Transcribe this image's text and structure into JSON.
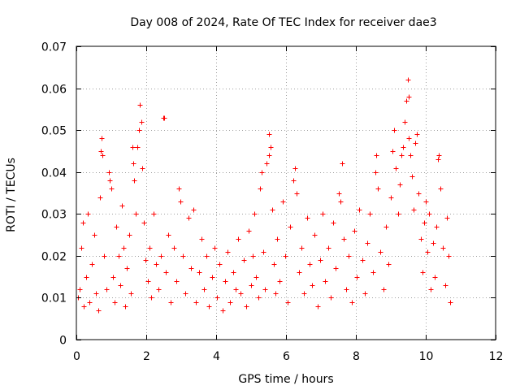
{
  "chart_data": {
    "type": "scatter",
    "title": "Day 008 of 2024, Rate Of TEC Index for receiver dae3",
    "xlabel": "GPS time / hours",
    "ylabel": "ROTI / TECUs",
    "xlim": [
      0,
      12
    ],
    "ylim": [
      0,
      0.07
    ],
    "xticks": [
      0,
      2,
      4,
      6,
      8,
      10,
      12
    ],
    "xtick_labels": [
      "0",
      "2",
      "4",
      "6",
      "8",
      "10",
      "12"
    ],
    "yticks": [
      0,
      0.01,
      0.02,
      0.03,
      0.04,
      0.05,
      0.06,
      0.07
    ],
    "ytick_labels": [
      "0",
      "0.01",
      "0.02",
      "0.03",
      "0.04",
      "0.05",
      "0.06",
      "0.07"
    ],
    "grid": true,
    "marker": "+",
    "color": "#ff0000",
    "series": [
      {
        "name": "ROTI",
        "points": [
          [
            0.05,
            0.01
          ],
          [
            0.1,
            0.012
          ],
          [
            0.15,
            0.022
          ],
          [
            0.18,
            0.028
          ],
          [
            0.22,
            0.008
          ],
          [
            0.28,
            0.015
          ],
          [
            0.32,
            0.03
          ],
          [
            0.38,
            0.009
          ],
          [
            0.45,
            0.018
          ],
          [
            0.5,
            0.025
          ],
          [
            0.55,
            0.011
          ],
          [
            0.62,
            0.007
          ],
          [
            0.68,
            0.034
          ],
          [
            0.7,
            0.045
          ],
          [
            0.72,
            0.048
          ],
          [
            0.75,
            0.044
          ],
          [
            0.8,
            0.02
          ],
          [
            0.85,
            0.012
          ],
          [
            0.92,
            0.04
          ],
          [
            0.95,
            0.038
          ],
          [
            1.0,
            0.036
          ],
          [
            1.05,
            0.015
          ],
          [
            1.1,
            0.009
          ],
          [
            1.15,
            0.027
          ],
          [
            1.2,
            0.02
          ],
          [
            1.25,
            0.013
          ],
          [
            1.3,
            0.032
          ],
          [
            1.35,
            0.022
          ],
          [
            1.4,
            0.008
          ],
          [
            1.45,
            0.017
          ],
          [
            1.5,
            0.025
          ],
          [
            1.55,
            0.011
          ],
          [
            1.6,
            0.046
          ],
          [
            1.62,
            0.042
          ],
          [
            1.65,
            0.038
          ],
          [
            1.7,
            0.03
          ],
          [
            1.75,
            0.046
          ],
          [
            1.8,
            0.05
          ],
          [
            1.82,
            0.056
          ],
          [
            1.85,
            0.052
          ],
          [
            1.88,
            0.041
          ],
          [
            1.92,
            0.028
          ],
          [
            1.98,
            0.019
          ],
          [
            2.05,
            0.014
          ],
          [
            2.1,
            0.022
          ],
          [
            2.15,
            0.01
          ],
          [
            2.2,
            0.03
          ],
          [
            2.28,
            0.018
          ],
          [
            2.35,
            0.012
          ],
          [
            2.42,
            0.02
          ],
          [
            2.48,
            0.053
          ],
          [
            2.5,
            0.053
          ],
          [
            2.55,
            0.016
          ],
          [
            2.62,
            0.025
          ],
          [
            2.7,
            0.009
          ],
          [
            2.78,
            0.022
          ],
          [
            2.85,
            0.014
          ],
          [
            2.92,
            0.036
          ],
          [
            2.98,
            0.033
          ],
          [
            3.05,
            0.02
          ],
          [
            3.12,
            0.011
          ],
          [
            3.2,
            0.029
          ],
          [
            3.28,
            0.017
          ],
          [
            3.35,
            0.031
          ],
          [
            3.42,
            0.009
          ],
          [
            3.5,
            0.016
          ],
          [
            3.58,
            0.024
          ],
          [
            3.65,
            0.012
          ],
          [
            3.72,
            0.02
          ],
          [
            3.8,
            0.008
          ],
          [
            3.88,
            0.015
          ],
          [
            3.95,
            0.022
          ],
          [
            4.02,
            0.01
          ],
          [
            4.1,
            0.018
          ],
          [
            4.18,
            0.007
          ],
          [
            4.25,
            0.014
          ],
          [
            4.32,
            0.021
          ],
          [
            4.4,
            0.009
          ],
          [
            4.48,
            0.016
          ],
          [
            4.55,
            0.012
          ],
          [
            4.62,
            0.024
          ],
          [
            4.7,
            0.011
          ],
          [
            4.78,
            0.019
          ],
          [
            4.85,
            0.008
          ],
          [
            4.92,
            0.026
          ],
          [
            5.0,
            0.013
          ],
          [
            5.05,
            0.02
          ],
          [
            5.1,
            0.03
          ],
          [
            5.15,
            0.015
          ],
          [
            5.2,
            0.01
          ],
          [
            5.25,
            0.036
          ],
          [
            5.3,
            0.04
          ],
          [
            5.35,
            0.021
          ],
          [
            5.4,
            0.012
          ],
          [
            5.45,
            0.042
          ],
          [
            5.5,
            0.044
          ],
          [
            5.52,
            0.049
          ],
          [
            5.55,
            0.046
          ],
          [
            5.6,
            0.031
          ],
          [
            5.65,
            0.018
          ],
          [
            5.7,
            0.011
          ],
          [
            5.75,
            0.024
          ],
          [
            5.82,
            0.014
          ],
          [
            5.9,
            0.033
          ],
          [
            5.98,
            0.02
          ],
          [
            6.05,
            0.009
          ],
          [
            6.12,
            0.027
          ],
          [
            6.2,
            0.038
          ],
          [
            6.25,
            0.041
          ],
          [
            6.3,
            0.035
          ],
          [
            6.38,
            0.016
          ],
          [
            6.45,
            0.022
          ],
          [
            6.52,
            0.011
          ],
          [
            6.6,
            0.029
          ],
          [
            6.68,
            0.018
          ],
          [
            6.75,
            0.013
          ],
          [
            6.82,
            0.025
          ],
          [
            6.9,
            0.008
          ],
          [
            6.98,
            0.019
          ],
          [
            7.05,
            0.03
          ],
          [
            7.12,
            0.014
          ],
          [
            7.2,
            0.022
          ],
          [
            7.28,
            0.01
          ],
          [
            7.35,
            0.028
          ],
          [
            7.42,
            0.017
          ],
          [
            7.5,
            0.035
          ],
          [
            7.55,
            0.033
          ],
          [
            7.6,
            0.042
          ],
          [
            7.65,
            0.024
          ],
          [
            7.72,
            0.012
          ],
          [
            7.8,
            0.02
          ],
          [
            7.88,
            0.009
          ],
          [
            7.95,
            0.026
          ],
          [
            8.02,
            0.015
          ],
          [
            8.1,
            0.031
          ],
          [
            8.18,
            0.019
          ],
          [
            8.25,
            0.011
          ],
          [
            8.32,
            0.023
          ],
          [
            8.4,
            0.03
          ],
          [
            8.48,
            0.016
          ],
          [
            8.55,
            0.04
          ],
          [
            8.58,
            0.044
          ],
          [
            8.62,
            0.036
          ],
          [
            8.7,
            0.021
          ],
          [
            8.78,
            0.012
          ],
          [
            8.85,
            0.027
          ],
          [
            8.92,
            0.018
          ],
          [
            9.0,
            0.034
          ],
          [
            9.05,
            0.045
          ],
          [
            9.1,
            0.05
          ],
          [
            9.15,
            0.041
          ],
          [
            9.2,
            0.03
          ],
          [
            9.25,
            0.037
          ],
          [
            9.3,
            0.044
          ],
          [
            9.35,
            0.046
          ],
          [
            9.4,
            0.052
          ],
          [
            9.45,
            0.057
          ],
          [
            9.48,
            0.062
          ],
          [
            9.5,
            0.058
          ],
          [
            9.52,
            0.048
          ],
          [
            9.55,
            0.044
          ],
          [
            9.6,
            0.039
          ],
          [
            9.65,
            0.031
          ],
          [
            9.7,
            0.047
          ],
          [
            9.75,
            0.049
          ],
          [
            9.8,
            0.035
          ],
          [
            9.85,
            0.024
          ],
          [
            9.9,
            0.016
          ],
          [
            9.95,
            0.028
          ],
          [
            10.0,
            0.033
          ],
          [
            10.05,
            0.021
          ],
          [
            10.1,
            0.03
          ],
          [
            10.15,
            0.012
          ],
          [
            10.2,
            0.023
          ],
          [
            10.25,
            0.015
          ],
          [
            10.3,
            0.027
          ],
          [
            10.35,
            0.043
          ],
          [
            10.38,
            0.044
          ],
          [
            10.42,
            0.036
          ],
          [
            10.48,
            0.022
          ],
          [
            10.55,
            0.013
          ],
          [
            10.6,
            0.029
          ],
          [
            10.65,
            0.02
          ],
          [
            10.7,
            0.009
          ]
        ]
      }
    ]
  }
}
